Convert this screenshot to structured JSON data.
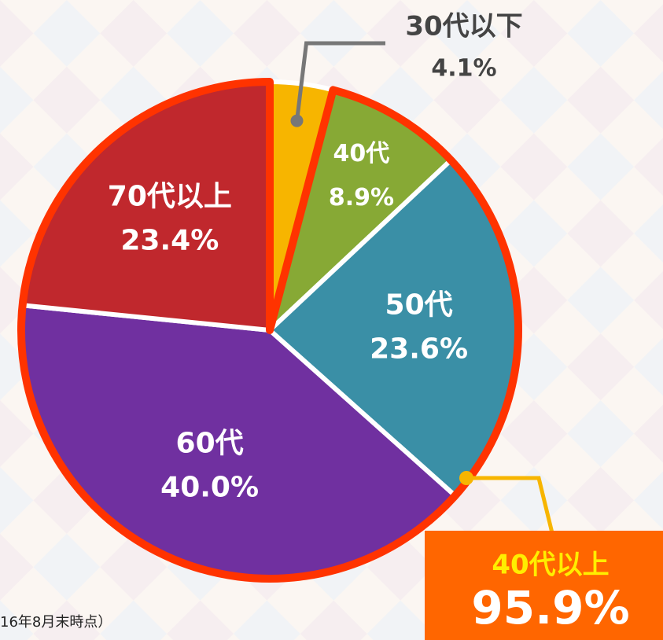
{
  "chart_data": {
    "type": "pie",
    "categories": [
      "30代以下",
      "40代",
      "50代",
      "60代",
      "70代以上"
    ],
    "values": [
      4.1,
      8.9,
      23.6,
      40.0,
      23.4
    ],
    "value_labels": [
      "4.1%",
      "8.9%",
      "23.6%",
      "40.0%",
      "23.4%"
    ],
    "colors": [
      "#f7b500",
      "#87a935",
      "#3a8fa6",
      "#7030a0",
      "#c0282d"
    ],
    "highlight": {
      "label": "40代以上",
      "value": 95.9,
      "value_label": "95.9%",
      "color": "#ff3300"
    },
    "footnote": "16年8月末時点）"
  }
}
